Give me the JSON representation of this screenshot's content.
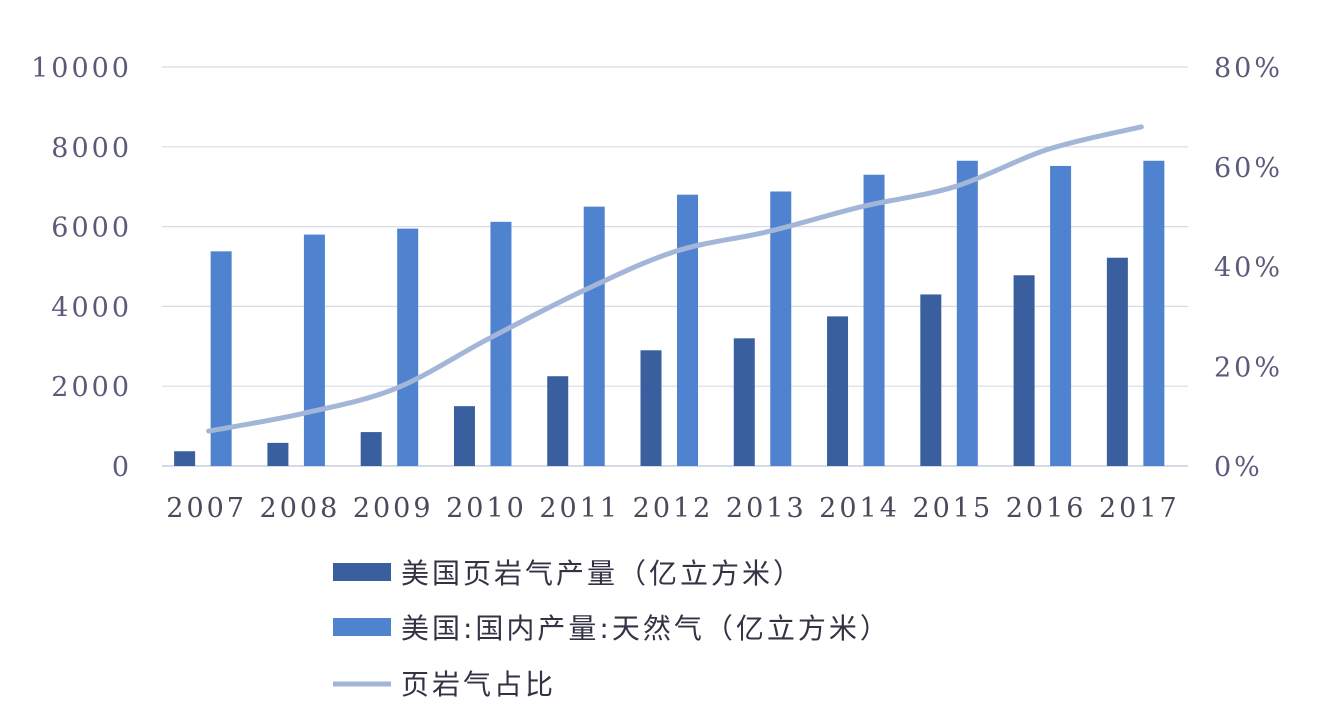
{
  "chart_data": {
    "type": "bar",
    "categories": [
      "2007",
      "2008",
      "2009",
      "2010",
      "2011",
      "2012",
      "2013",
      "2014",
      "2015",
      "2016",
      "2017"
    ],
    "series": [
      {
        "name": "美国页岩气产量（亿立方米）",
        "type": "bar",
        "axis": "left",
        "color": "#3a5f9e",
        "values": [
          370,
          580,
          850,
          1500,
          2250,
          2900,
          3200,
          3750,
          4300,
          4780,
          5220
        ]
      },
      {
        "name": "美国:国内产量:天然气（亿立方米）",
        "type": "bar",
        "axis": "left",
        "color": "#4f82cf",
        "values": [
          5380,
          5800,
          5950,
          6120,
          6500,
          6800,
          6880,
          7300,
          7650,
          7520,
          7650
        ]
      },
      {
        "name": "页岩气占比",
        "type": "line",
        "axis": "right",
        "color": "#a3b6d8",
        "values": [
          7,
          10.5,
          15.5,
          25.5,
          35,
          43,
          47,
          52,
          56,
          63.5,
          68
        ]
      }
    ],
    "y_left": {
      "ylim": [
        0,
        10000
      ],
      "ticks": [
        "0",
        "2000",
        "4000",
        "6000",
        "8000",
        "10000"
      ]
    },
    "y_right": {
      "ylim": [
        0,
        80
      ],
      "ticks": [
        "0%",
        "20%",
        "40%",
        "60%",
        "80%"
      ]
    },
    "grid": true,
    "legend_position": "bottom-left"
  }
}
